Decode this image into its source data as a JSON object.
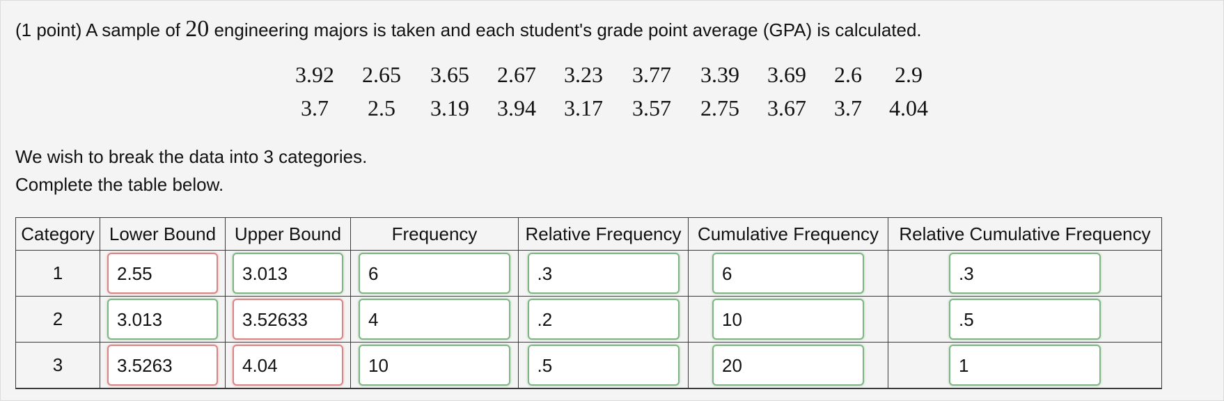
{
  "question": {
    "intro_prefix": "(1 point) A sample of ",
    "sample_size": "20",
    "intro_suffix": " engineering majors is taken and each student's grade point average (GPA) is calculated.",
    "line1": "We wish to break the data into 3 categories.",
    "line2": "Complete the table below."
  },
  "gpa_data": [
    [
      "3.92",
      "2.65",
      "3.65",
      "2.67",
      "3.23",
      "3.77",
      "3.39",
      "3.69",
      "2.6",
      "2.9"
    ],
    [
      "3.7",
      "2.5",
      "3.19",
      "3.94",
      "3.17",
      "3.57",
      "2.75",
      "3.67",
      "3.7",
      "4.04"
    ]
  ],
  "table": {
    "headers": [
      "Category",
      "Lower Bound",
      "Upper Bound",
      "Frequency",
      "Relative Frequency",
      "Cumulative Frequency",
      "Relative Cumulative Frequency"
    ],
    "rows": [
      {
        "category": "1",
        "lower": {
          "value": "2.55",
          "status": "incorrect"
        },
        "upper": {
          "value": "3.013",
          "status": "correct"
        },
        "frequency": {
          "value": "6",
          "status": "correct"
        },
        "relative_frequency": {
          "value": ".3",
          "status": "correct"
        },
        "cumulative_frequency": {
          "value": "6",
          "status": "correct"
        },
        "relative_cumulative_frequency": {
          "value": ".3",
          "status": "correct"
        }
      },
      {
        "category": "2",
        "lower": {
          "value": "3.013",
          "status": "correct"
        },
        "upper": {
          "value": "3.52633",
          "status": "incorrect"
        },
        "frequency": {
          "value": "4",
          "status": "correct"
        },
        "relative_frequency": {
          "value": ".2",
          "status": "correct"
        },
        "cumulative_frequency": {
          "value": "10",
          "status": "correct"
        },
        "relative_cumulative_frequency": {
          "value": ".5",
          "status": "correct"
        }
      },
      {
        "category": "3",
        "lower": {
          "value": "3.5263",
          "status": "incorrect"
        },
        "upper": {
          "value": "4.04",
          "status": "incorrect"
        },
        "frequency": {
          "value": "10",
          "status": "correct"
        },
        "relative_frequency": {
          "value": ".5",
          "status": "correct"
        },
        "cumulative_frequency": {
          "value": "20",
          "status": "correct"
        },
        "relative_cumulative_frequency": {
          "value": "1",
          "status": "correct"
        }
      }
    ]
  },
  "colors": {
    "correct_border": "#7fb583",
    "incorrect_border": "#d98585",
    "panel_background": "#f4f4f4"
  }
}
